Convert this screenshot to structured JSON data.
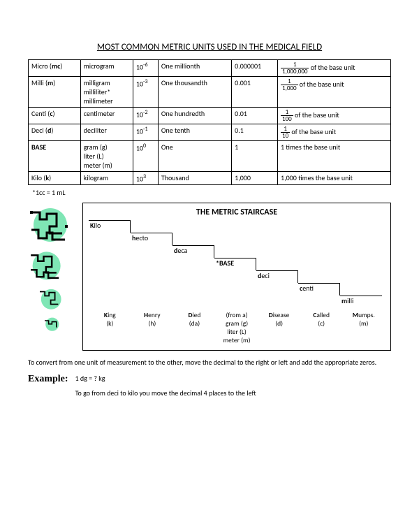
{
  "title": "MOST COMMON METRIC UNITS USED IN THE MEDICAL FIELD",
  "table": {
    "rows": [
      {
        "prefix": "Micro (",
        "abbr": "mc",
        "suffix": ")",
        "units": "microgram",
        "power": "10",
        "exp": "-6",
        "word": "One millionth",
        "dec": "0.000001",
        "frac_num": "1",
        "frac_den": "1,000,000",
        "frac_tail": " of the base unit"
      },
      {
        "prefix": "Milli (",
        "abbr": "m",
        "suffix": ")",
        "units": "milligram\nmilliliter*\nmillimeter",
        "power": "10",
        "exp": "-3",
        "word": "One thousandth",
        "dec": "0.001",
        "frac_num": "1",
        "frac_den": "1,000",
        "frac_tail": " of the base unit"
      },
      {
        "prefix": "Centi (",
        "abbr": "c",
        "suffix": ")",
        "units": "centimeter",
        "power": "10",
        "exp": "-2",
        "word": "One hundredth",
        "dec": "0.01",
        "frac_num": "1",
        "frac_den": "100",
        "frac_tail": " of the base unit"
      },
      {
        "prefix": "Deci (",
        "abbr": "d",
        "suffix": ")",
        "units": "deciliter",
        "power": "10",
        "exp": "-1",
        "word": "One tenth",
        "dec": "0.1",
        "frac_num": "1",
        "frac_den": "10",
        "frac_tail": " of the base unit"
      },
      {
        "prefix": "",
        "abbr": "BASE",
        "suffix": "",
        "units": "gram (g)\nliter (L)\nmeter (m)",
        "power": "10",
        "exp": "0",
        "word": "One",
        "dec": "1",
        "frac_plain": "1 times the base unit"
      },
      {
        "prefix": "Kilo (",
        "abbr": "k",
        "suffix": ")",
        "units": "kilogram",
        "power": "10",
        "exp": "3",
        "word": "Thousand",
        "dec": "1,000",
        "frac_plain": "1,000 times the base unit"
      }
    ]
  },
  "footnote": "*1cc = 1 mL",
  "staircase": {
    "title": "THE METRIC STAIRCASE",
    "steps": [
      {
        "bold": "K",
        "rest": "ilo"
      },
      {
        "bold": "h",
        "rest": "ecto"
      },
      {
        "bold": "d",
        "rest": "eca"
      },
      {
        "bold": "*",
        "rest": "BASE"
      },
      {
        "bold": "d",
        "rest": "eci"
      },
      {
        "bold": "c",
        "rest": "enti"
      },
      {
        "bold": "m",
        "rest": "illi"
      }
    ],
    "mnemonic": [
      {
        "w": "King",
        "b": "K",
        "a": "(k)"
      },
      {
        "w": "Henry",
        "b": "H",
        "a": "(h)"
      },
      {
        "w": "Died",
        "b": "D",
        "a": "(da)"
      },
      {
        "w": "(from a)\ngram (g)\nliter (L)\nmeter (m)",
        "b": "",
        "a": ""
      },
      {
        "w": "Disease",
        "b": "D",
        "a": "(d)"
      },
      {
        "w": "Called",
        "b": "C",
        "a": "(c)"
      },
      {
        "w": "Mumps.",
        "b": "M",
        "a": "(m)"
      }
    ]
  },
  "instruction": "To convert from one unit of measurement to the other, move the decimal to the right or left and add the appropriate zeros.",
  "example": {
    "label": "Example:",
    "line1": "1 dg = ? kg",
    "line2": "To go from deci to kilo you move the decimal 4 places to the left"
  },
  "colors": {
    "accent": "#7fe6b5",
    "line": "#000000"
  }
}
